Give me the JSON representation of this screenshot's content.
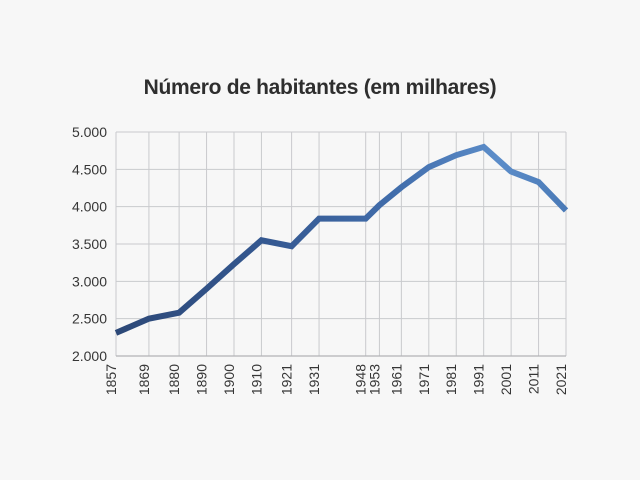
{
  "chart_data": {
    "type": "line",
    "title": "Número de habitantes (em milhares)",
    "x_labels": [
      "1857",
      "1869",
      "1880",
      "1890",
      "1900",
      "1910",
      "1921",
      "1931",
      "1948",
      "1953",
      "1961",
      "1971",
      "1981",
      "1991",
      "2001",
      "2011",
      "2021"
    ],
    "x": [
      1857,
      1869,
      1880,
      1890,
      1900,
      1910,
      1921,
      1931,
      1948,
      1953,
      1961,
      1971,
      1981,
      1991,
      2001,
      2011,
      2021
    ],
    "values": [
      2310,
      2500,
      2580,
      2900,
      3230,
      3550,
      3470,
      3840,
      3840,
      4020,
      4260,
      4530,
      4690,
      4800,
      4470,
      4330,
      3950
    ],
    "xlabel": "",
    "ylabel": "",
    "ylim": [
      2000,
      5000
    ],
    "ytick_values": [
      2000,
      2500,
      3000,
      3500,
      4000,
      4500,
      5000
    ],
    "ytick_labels": [
      "2.000",
      "2.500",
      "3.000",
      "3.500",
      "4.000",
      "4.500",
      "5.000"
    ],
    "x_axis": "proportional-years",
    "grid": "horizontal-and-vertical",
    "legend": "none",
    "line_width": 6,
    "line_gradient": [
      {
        "offset": "0%",
        "color": "#2c4877"
      },
      {
        "offset": "35%",
        "color": "#355992"
      },
      {
        "offset": "62%",
        "color": "#416dab"
      },
      {
        "offset": "85%",
        "color": "#5c8dc9"
      },
      {
        "offset": "100%",
        "color": "#4a7ab7"
      }
    ],
    "colors": {
      "background": "#f7f7f7",
      "grid": "#c9cacd",
      "axis": "#b2b3b6",
      "title_text": "#2e2e2e",
      "tick_text": "#363636"
    }
  }
}
